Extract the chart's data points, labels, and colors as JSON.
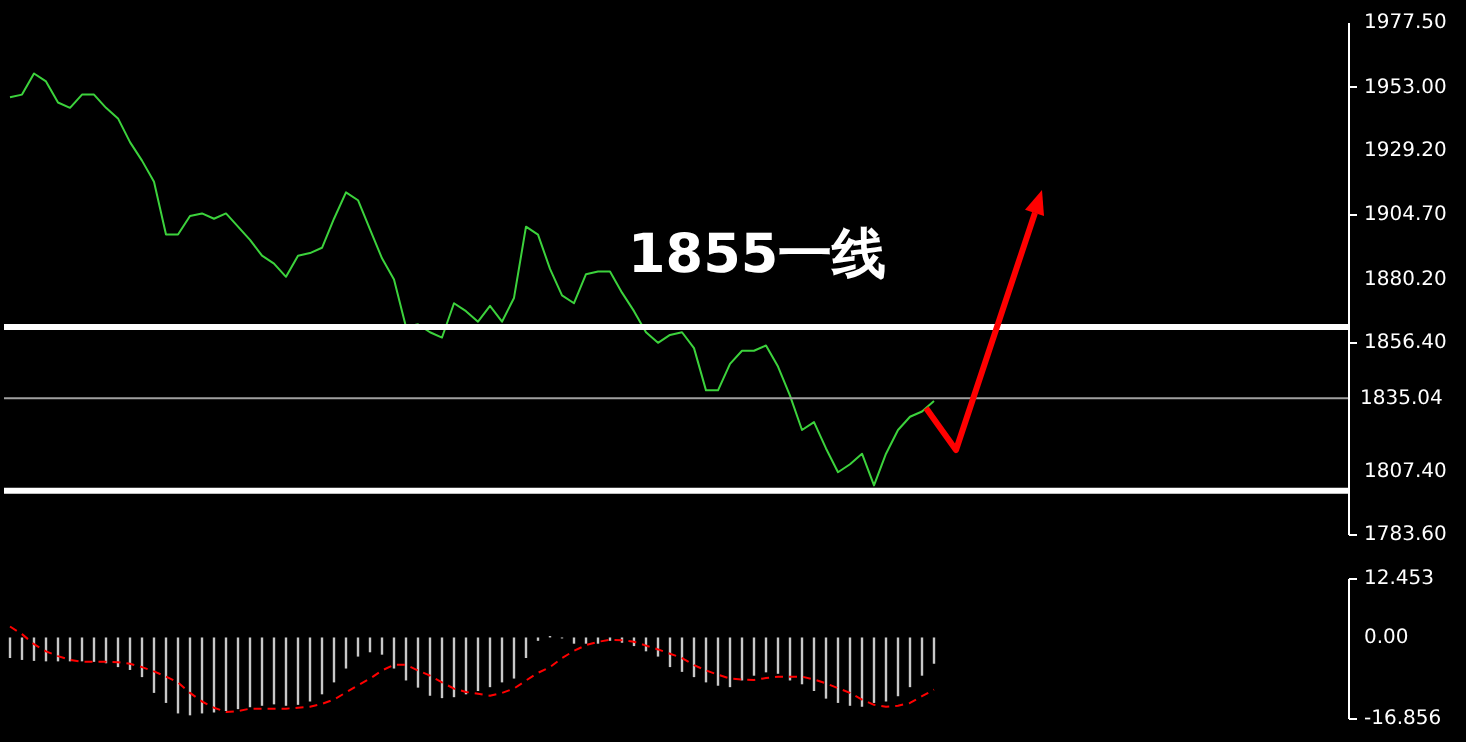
{
  "chart_data": [
    {
      "type": "line",
      "categories": [
        null,
        null,
        null,
        null,
        null,
        null,
        null,
        null,
        null,
        null,
        null,
        null,
        null,
        null,
        null,
        null,
        null,
        null,
        null,
        null,
        null,
        null,
        null,
        null,
        null,
        null,
        null,
        null,
        null,
        null,
        null,
        null,
        null,
        null,
        null,
        null,
        null,
        null,
        null,
        null,
        null,
        null,
        null,
        null,
        null,
        null,
        null,
        null,
        null,
        null,
        null,
        null,
        null,
        null,
        null,
        null,
        null,
        null,
        null,
        null,
        null,
        null,
        null,
        null,
        null,
        null,
        null,
        null,
        null,
        null,
        null,
        null,
        null,
        null,
        null,
        null,
        null,
        null,
        null,
        null,
        null,
        null,
        null,
        null,
        null,
        null,
        null,
        null,
        null,
        null,
        null,
        null,
        null,
        null,
        null,
        null,
        null,
        null,
        null,
        null,
        null,
        null,
        null,
        null,
        null,
        null,
        null,
        null,
        null,
        null,
        null,
        null
      ],
      "series": [
        {
          "color": "#3cd23c",
          "values": [
            1949,
            1950,
            1958,
            1955,
            1947,
            1945,
            1950,
            1950,
            1945,
            1941,
            1932,
            1925,
            1917,
            1897,
            1897,
            1904,
            1905,
            1903,
            1905,
            1900,
            1895,
            1889,
            1886,
            1881,
            1889,
            1890,
            1892,
            1903,
            1913,
            1910,
            1899,
            1888,
            1880,
            1862,
            1863,
            1860,
            1858,
            1871,
            1868,
            1864,
            1870,
            1864,
            1873,
            1900,
            1897,
            1884,
            1874,
            1871,
            1882,
            1883,
            1883,
            1875,
            1868,
            1860,
            1856,
            1859,
            1860,
            1854,
            1838,
            1838,
            1848,
            1853,
            1853,
            1855,
            1847,
            1836,
            1823,
            1826,
            1816,
            1807,
            1810,
            1814,
            1802,
            1814,
            1823,
            1828,
            1830,
            1834,
            null,
            null,
            null,
            null,
            null,
            null,
            null,
            null,
            null,
            null,
            null,
            null,
            null,
            null,
            null,
            null,
            null,
            null,
            null,
            null,
            null,
            null,
            null,
            null,
            null,
            null,
            null,
            null,
            null,
            null,
            null,
            null,
            null,
            null
          ]
        }
      ],
      "ylim": [
        1783.6,
        1977.5
      ],
      "yticks": [
        {
          "value": 1783.6,
          "label": "1783.60"
        },
        {
          "value": 1807.4,
          "label": "1807.40"
        },
        {
          "value": 1856.4,
          "label": "1856.40"
        },
        {
          "value": 1880.2,
          "label": "1880.20"
        },
        {
          "value": 1904.7,
          "label": "1904.70"
        },
        {
          "value": 1929.2,
          "label": "1929.20"
        },
        {
          "value": 1953,
          "label": "1953.00"
        },
        {
          "value": 1977.5,
          "label": "1977.50"
        }
      ],
      "ref_lines": [
        {
          "axis": "y",
          "value": 1862,
          "color": "#ffffff"
        },
        {
          "axis": "y",
          "value": 1800,
          "color": "#ffffff"
        },
        {
          "axis": "y",
          "value": 1835.04,
          "label": "1835.04",
          "color": "#a0a0a0"
        }
      ],
      "annotations": [
        "1855一线"
      ],
      "tick_labels": "y"
    },
    {
      "type": "bar",
      "categories": [
        null,
        null,
        null,
        null,
        null,
        null,
        null,
        null,
        null,
        null,
        null,
        null,
        null,
        null,
        null,
        null,
        null,
        null,
        null,
        null,
        null,
        null,
        null,
        null,
        null,
        null,
        null,
        null,
        null,
        null,
        null,
        null,
        null,
        null,
        null,
        null,
        null,
        null,
        null,
        null,
        null,
        null,
        null,
        null,
        null,
        null,
        null,
        null,
        null,
        null,
        null,
        null,
        null,
        null,
        null,
        null,
        null,
        null,
        null,
        null,
        null,
        null,
        null,
        null,
        null,
        null,
        null,
        null,
        null,
        null,
        null,
        null,
        null,
        null,
        null,
        null,
        null,
        null,
        null,
        null,
        null,
        null,
        null,
        null,
        null,
        null,
        null,
        null,
        null,
        null,
        null,
        null,
        null,
        null,
        null,
        null,
        null,
        null,
        null,
        null,
        null,
        null,
        null,
        null,
        null,
        null,
        null,
        null,
        null,
        null,
        null,
        null
      ],
      "series": [
        {
          "color": "#c8c8c8",
          "values": [
            -4.3,
            -4.7,
            -4.9,
            -5.0,
            -5.0,
            -5.0,
            -5.0,
            -5.1,
            -5.4,
            -6.2,
            -6.8,
            -8.3,
            -11.6,
            -13.7,
            -15.9,
            -16.3,
            -15.9,
            -15.7,
            -15.4,
            -15.0,
            -14.6,
            -14.3,
            -14.0,
            -14.3,
            -14.1,
            -13.4,
            -11.9,
            -9.4,
            -6.5,
            -4.0,
            -3.1,
            -3.6,
            -6.5,
            -9.0,
            -10.5,
            -12.2,
            -12.7,
            -12.5,
            -11.9,
            -11.2,
            -10.4,
            -9.4,
            -8.6,
            -4.3,
            -0.7,
            0.3,
            -0.2,
            -1.3,
            -1.3,
            -1.3,
            -0.7,
            -1.1,
            -1.8,
            -2.9,
            -4.0,
            -6.2,
            -7.2,
            -8.3,
            -9.4,
            -10.1,
            -10.4,
            -9.0,
            -8.0,
            -7.3,
            -7.6,
            -9.0,
            -9.8,
            -11.2,
            -12.8,
            -13.7,
            -14.3,
            -14.5,
            -13.7,
            -13.4,
            -12.3,
            -10.4,
            -8.0,
            -5.5,
            null,
            null,
            null,
            null,
            null,
            null,
            null,
            null,
            null,
            null,
            null,
            null,
            null,
            null,
            null,
            null,
            null,
            null,
            null,
            null,
            null,
            null,
            null,
            null,
            null,
            null,
            null,
            null,
            null,
            null,
            null,
            null,
            null,
            null
          ]
        },
        {
          "type": "line",
          "color": "#ff0000",
          "line_style": "dashed",
          "values": [
            2.3,
            0.7,
            -1.4,
            -2.9,
            -3.9,
            -4.7,
            -5.1,
            -5.1,
            -5.1,
            -5.2,
            -5.5,
            -6.2,
            -7.1,
            -8.2,
            -9.4,
            -11.6,
            -13.4,
            -14.7,
            -15.6,
            -15.4,
            -14.9,
            -14.9,
            -14.9,
            -14.9,
            -14.7,
            -14.5,
            -13.9,
            -13.0,
            -11.5,
            -10.0,
            -8.6,
            -6.9,
            -5.7,
            -5.7,
            -6.9,
            -8.0,
            -9.4,
            -10.7,
            -11.4,
            -11.8,
            -12.2,
            -11.6,
            -10.7,
            -9.0,
            -7.4,
            -6.2,
            -4.3,
            -2.8,
            -1.6,
            -0.9,
            -0.5,
            -0.6,
            -0.9,
            -1.7,
            -2.5,
            -3.4,
            -4.3,
            -5.8,
            -6.9,
            -7.8,
            -8.6,
            -8.8,
            -8.9,
            -8.5,
            -8.2,
            -8.2,
            -8.2,
            -8.8,
            -9.6,
            -10.6,
            -11.6,
            -13.0,
            -14.1,
            -14.5,
            -14.3,
            -13.7,
            -12.3,
            -10.9,
            null,
            null,
            null,
            null,
            null,
            null,
            null,
            null,
            null,
            null,
            null,
            null,
            null,
            null,
            null,
            null,
            null,
            null,
            null,
            null,
            null,
            null,
            null,
            null,
            null,
            null,
            null,
            null,
            null,
            null,
            null,
            null,
            null,
            null
          ]
        }
      ],
      "ylim": [
        -16.856,
        12.453
      ],
      "yticks": [
        {
          "value": 12.453,
          "label": "12.453"
        },
        {
          "value": 0,
          "label": "0.00"
        },
        {
          "value": -16.856,
          "label": "-16.856"
        }
      ],
      "tick_labels": "y"
    }
  ]
}
